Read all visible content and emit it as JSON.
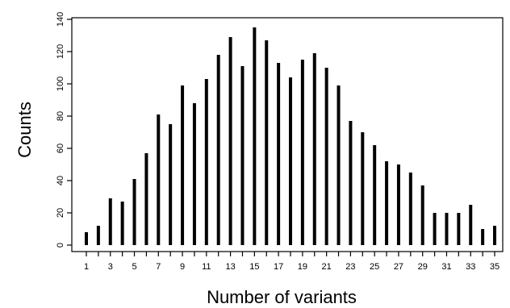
{
  "chart_data": {
    "type": "bar",
    "title": "",
    "xlabel": "Number of variants",
    "ylabel": "Counts",
    "x": [
      1,
      2,
      3,
      4,
      5,
      6,
      7,
      8,
      9,
      10,
      11,
      12,
      13,
      14,
      15,
      16,
      17,
      18,
      19,
      20,
      21,
      22,
      23,
      24,
      25,
      26,
      27,
      28,
      29,
      30,
      31,
      32,
      33,
      34,
      35
    ],
    "values": [
      8,
      12,
      29,
      27,
      41,
      57,
      81,
      75,
      99,
      88,
      103,
      118,
      129,
      111,
      135,
      127,
      113,
      104,
      115,
      119,
      110,
      99,
      77,
      70,
      62,
      52,
      50,
      45,
      37,
      20,
      20,
      20,
      25,
      10,
      12
    ],
    "xtick_labels": [
      "1",
      "3",
      "5",
      "7",
      "9",
      "11",
      "13",
      "15",
      "17",
      "19",
      "21",
      "23",
      "25",
      "27",
      "29",
      "31",
      "33",
      "35"
    ],
    "yticks": [
      0,
      20,
      40,
      60,
      80,
      100,
      120,
      140
    ],
    "ylim": [
      0,
      140
    ],
    "grid": false,
    "legend": "none"
  }
}
